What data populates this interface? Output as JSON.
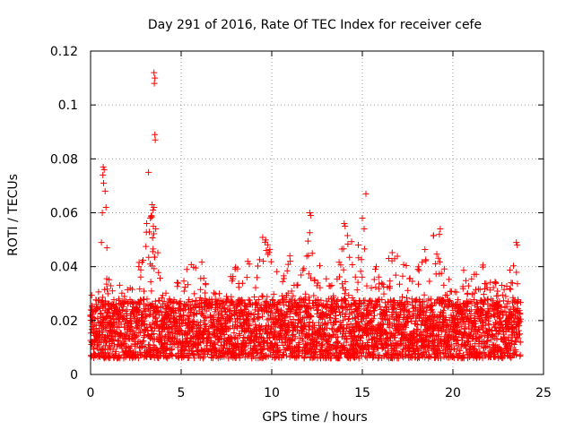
{
  "chart_data": {
    "type": "scatter",
    "title": "Day 291 of 2016, Rate Of TEC Index for receiver cefe",
    "xlabel": "GPS time / hours",
    "ylabel": "ROTI / TECUs",
    "xlim": [
      0,
      25
    ],
    "ylim": [
      0,
      0.12
    ],
    "xticks": [
      0,
      5,
      10,
      15,
      20,
      25
    ],
    "yticks": [
      0,
      0.02,
      0.04,
      0.06,
      0.08,
      0.1,
      0.12
    ],
    "xtick_labels": [
      "0",
      "5",
      "10",
      "15",
      "20",
      "25"
    ],
    "ytick_labels": [
      "0",
      "0.02",
      "0.04",
      "0.06",
      "0.08",
      "0.1",
      "0.12"
    ],
    "grid": true,
    "marker": "+",
    "color": "#ff0000",
    "time_range_hours": [
      0,
      23.75
    ],
    "baseline_range": [
      0.006,
      0.028
    ],
    "activity_envelope": [
      [
        0.0,
        0.031
      ],
      [
        0.5,
        0.032
      ],
      [
        1.0,
        0.038
      ],
      [
        1.5,
        0.034
      ],
      [
        2.0,
        0.032
      ],
      [
        2.5,
        0.036
      ],
      [
        3.0,
        0.054
      ],
      [
        3.5,
        0.062
      ],
      [
        4.0,
        0.035
      ],
      [
        4.5,
        0.03
      ],
      [
        5.0,
        0.04
      ],
      [
        5.5,
        0.044
      ],
      [
        6.0,
        0.046
      ],
      [
        6.5,
        0.035
      ],
      [
        7.0,
        0.03
      ],
      [
        7.5,
        0.038
      ],
      [
        8.0,
        0.042
      ],
      [
        8.5,
        0.044
      ],
      [
        9.0,
        0.04
      ],
      [
        9.5,
        0.054
      ],
      [
        10.0,
        0.045
      ],
      [
        10.5,
        0.035
      ],
      [
        11.0,
        0.043
      ],
      [
        11.5,
        0.032
      ],
      [
        12.0,
        0.06
      ],
      [
        12.5,
        0.044
      ],
      [
        13.0,
        0.036
      ],
      [
        13.5,
        0.032
      ],
      [
        14.0,
        0.055
      ],
      [
        14.5,
        0.05
      ],
      [
        15.0,
        0.055
      ],
      [
        15.5,
        0.044
      ],
      [
        16.0,
        0.04
      ],
      [
        16.5,
        0.045
      ],
      [
        17.0,
        0.046
      ],
      [
        17.5,
        0.042
      ],
      [
        18.0,
        0.046
      ],
      [
        18.5,
        0.048
      ],
      [
        19.0,
        0.053
      ],
      [
        19.5,
        0.04
      ],
      [
        20.0,
        0.033
      ],
      [
        20.5,
        0.04
      ],
      [
        21.0,
        0.036
      ],
      [
        21.5,
        0.044
      ],
      [
        22.0,
        0.036
      ],
      [
        22.5,
        0.034
      ],
      [
        23.0,
        0.041
      ],
      [
        23.5,
        0.048
      ]
    ],
    "outliers": [
      {
        "x": 0.7,
        "y": 0.077
      },
      {
        "x": 0.75,
        "y": 0.076
      },
      {
        "x": 0.68,
        "y": 0.074
      },
      {
        "x": 0.72,
        "y": 0.071
      },
      {
        "x": 0.8,
        "y": 0.068
      },
      {
        "x": 0.65,
        "y": 0.06
      },
      {
        "x": 0.85,
        "y": 0.062
      },
      {
        "x": 0.6,
        "y": 0.049
      },
      {
        "x": 0.9,
        "y": 0.047
      },
      {
        "x": 3.2,
        "y": 0.075
      },
      {
        "x": 3.5,
        "y": 0.112
      },
      {
        "x": 3.55,
        "y": 0.11
      },
      {
        "x": 3.52,
        "y": 0.108
      },
      {
        "x": 3.55,
        "y": 0.089
      },
      {
        "x": 3.57,
        "y": 0.087
      },
      {
        "x": 3.4,
        "y": 0.063
      },
      {
        "x": 3.45,
        "y": 0.061
      },
      {
        "x": 3.5,
        "y": 0.062
      },
      {
        "x": 3.3,
        "y": 0.058
      },
      {
        "x": 3.1,
        "y": 0.056
      },
      {
        "x": 3.6,
        "y": 0.054
      },
      {
        "x": 11.0,
        "y": 0.044
      },
      {
        "x": 11.02,
        "y": 0.042
      },
      {
        "x": 12.1,
        "y": 0.06
      },
      {
        "x": 12.15,
        "y": 0.059
      },
      {
        "x": 14.0,
        "y": 0.056
      },
      {
        "x": 14.05,
        "y": 0.055
      },
      {
        "x": 15.2,
        "y": 0.067
      },
      {
        "x": 15.0,
        "y": 0.058
      },
      {
        "x": 15.1,
        "y": 0.054
      },
      {
        "x": 19.3,
        "y": 0.054
      },
      {
        "x": 19.25,
        "y": 0.052
      },
      {
        "x": 23.5,
        "y": 0.049
      },
      {
        "x": 23.55,
        "y": 0.048
      }
    ]
  }
}
